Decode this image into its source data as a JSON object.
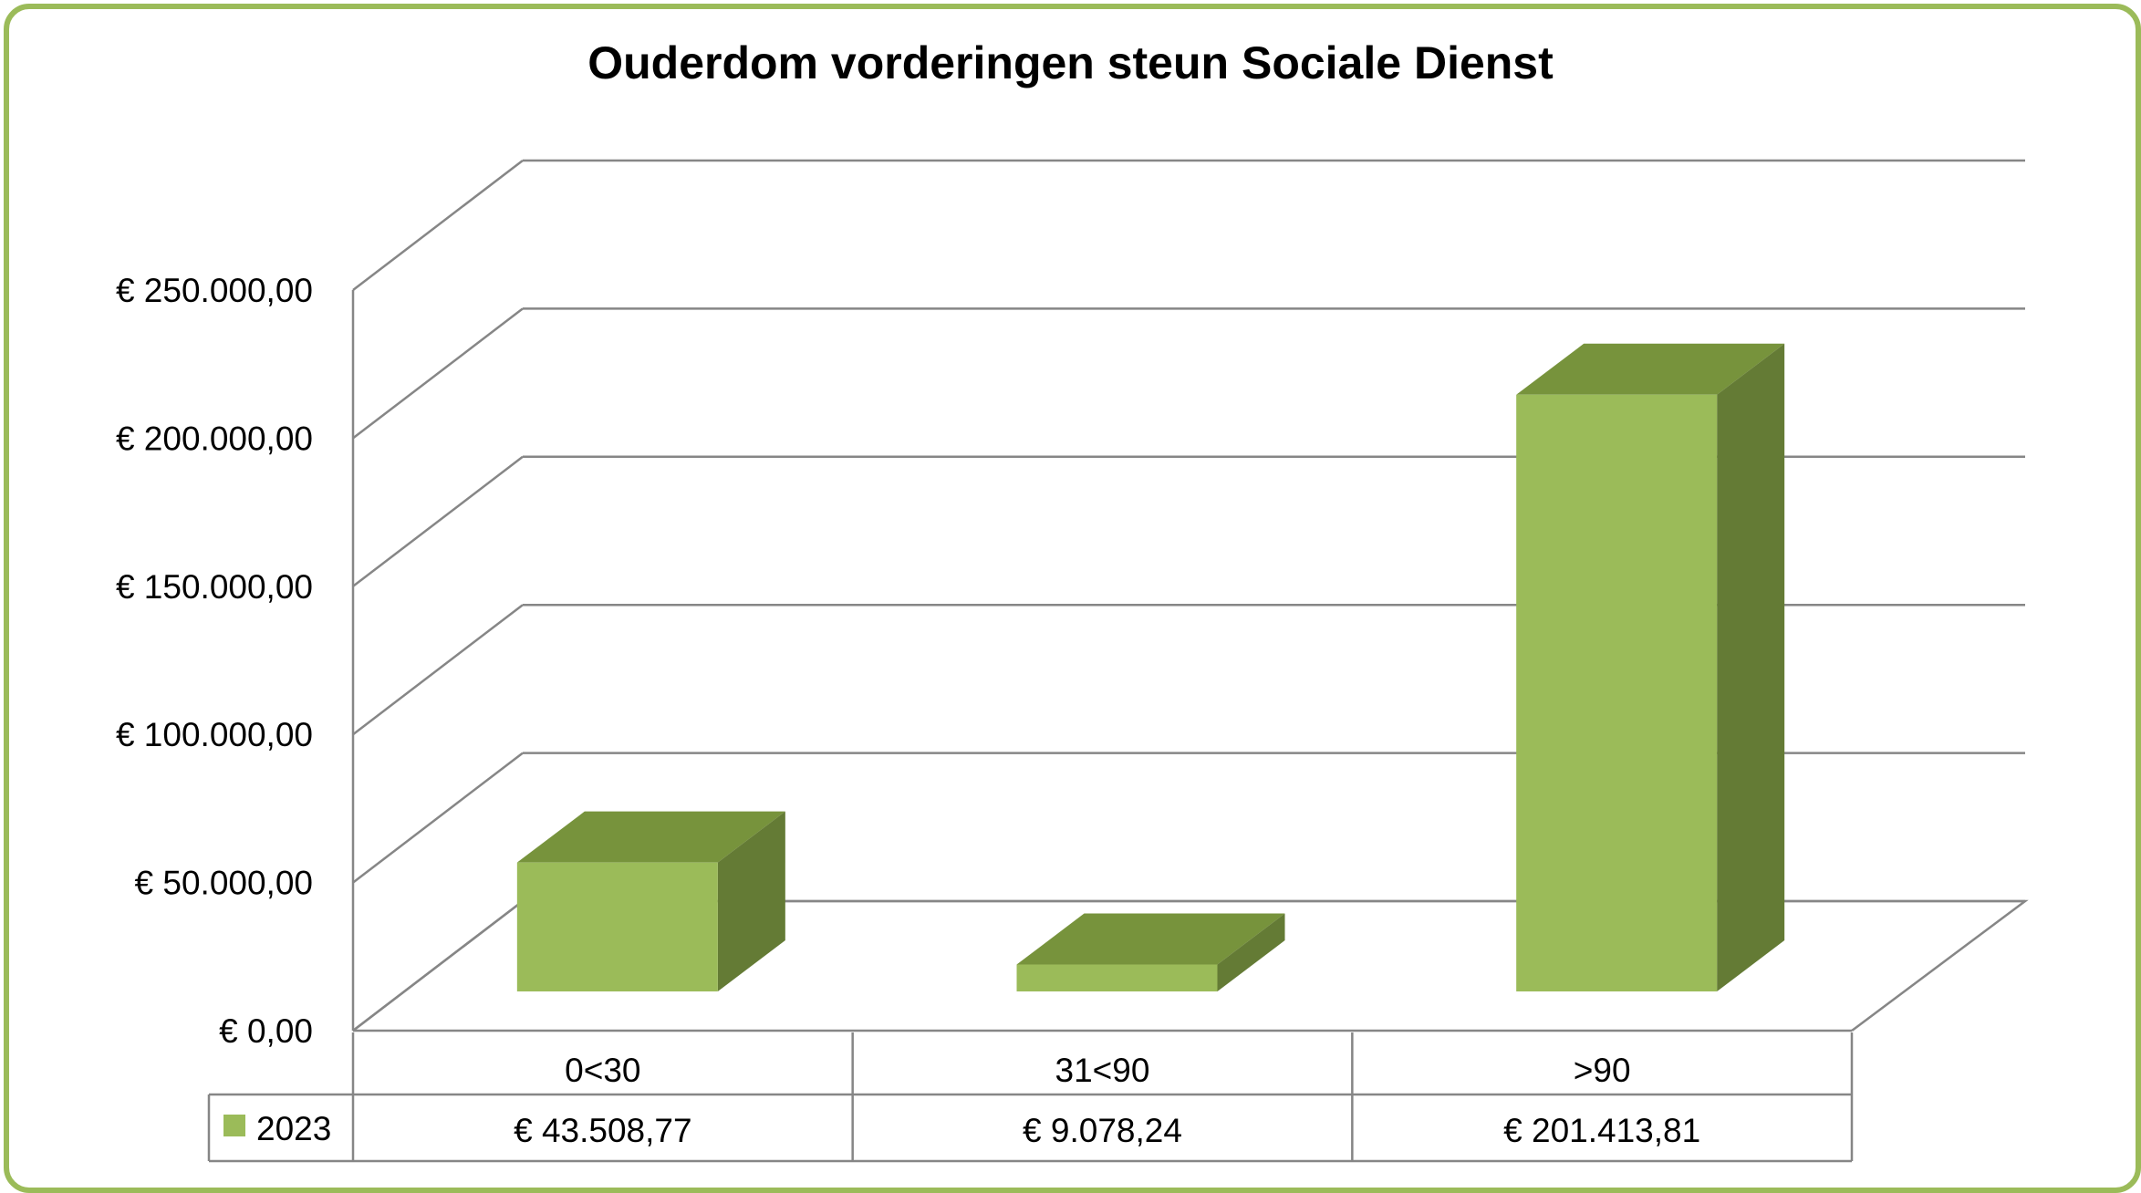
{
  "chart_data": {
    "type": "bar",
    "title": "Ouderdom vorderingen steun Sociale Dienst",
    "categories": [
      "0<30",
      "31<90",
      ">90"
    ],
    "series": [
      {
        "name": "2023",
        "values": [
          43508.77,
          9078.24,
          201413.81
        ],
        "labels": [
          "€ 43.508,77",
          "€ 9.078,24",
          "€ 201.413,81"
        ]
      }
    ],
    "y_ticks": [
      "€ 0,00",
      "€ 50.000,00",
      "€ 100.000,00",
      "€ 150.000,00",
      "€ 200.000,00",
      "€ 250.000,00"
    ],
    "ylim": [
      0,
      250000
    ],
    "grid": true,
    "legend": "data-table",
    "colors": {
      "front": "#9bbb59",
      "top": "#77933c",
      "side": "#647b35",
      "frame": "#9bbb59",
      "grid": "#868686"
    }
  }
}
